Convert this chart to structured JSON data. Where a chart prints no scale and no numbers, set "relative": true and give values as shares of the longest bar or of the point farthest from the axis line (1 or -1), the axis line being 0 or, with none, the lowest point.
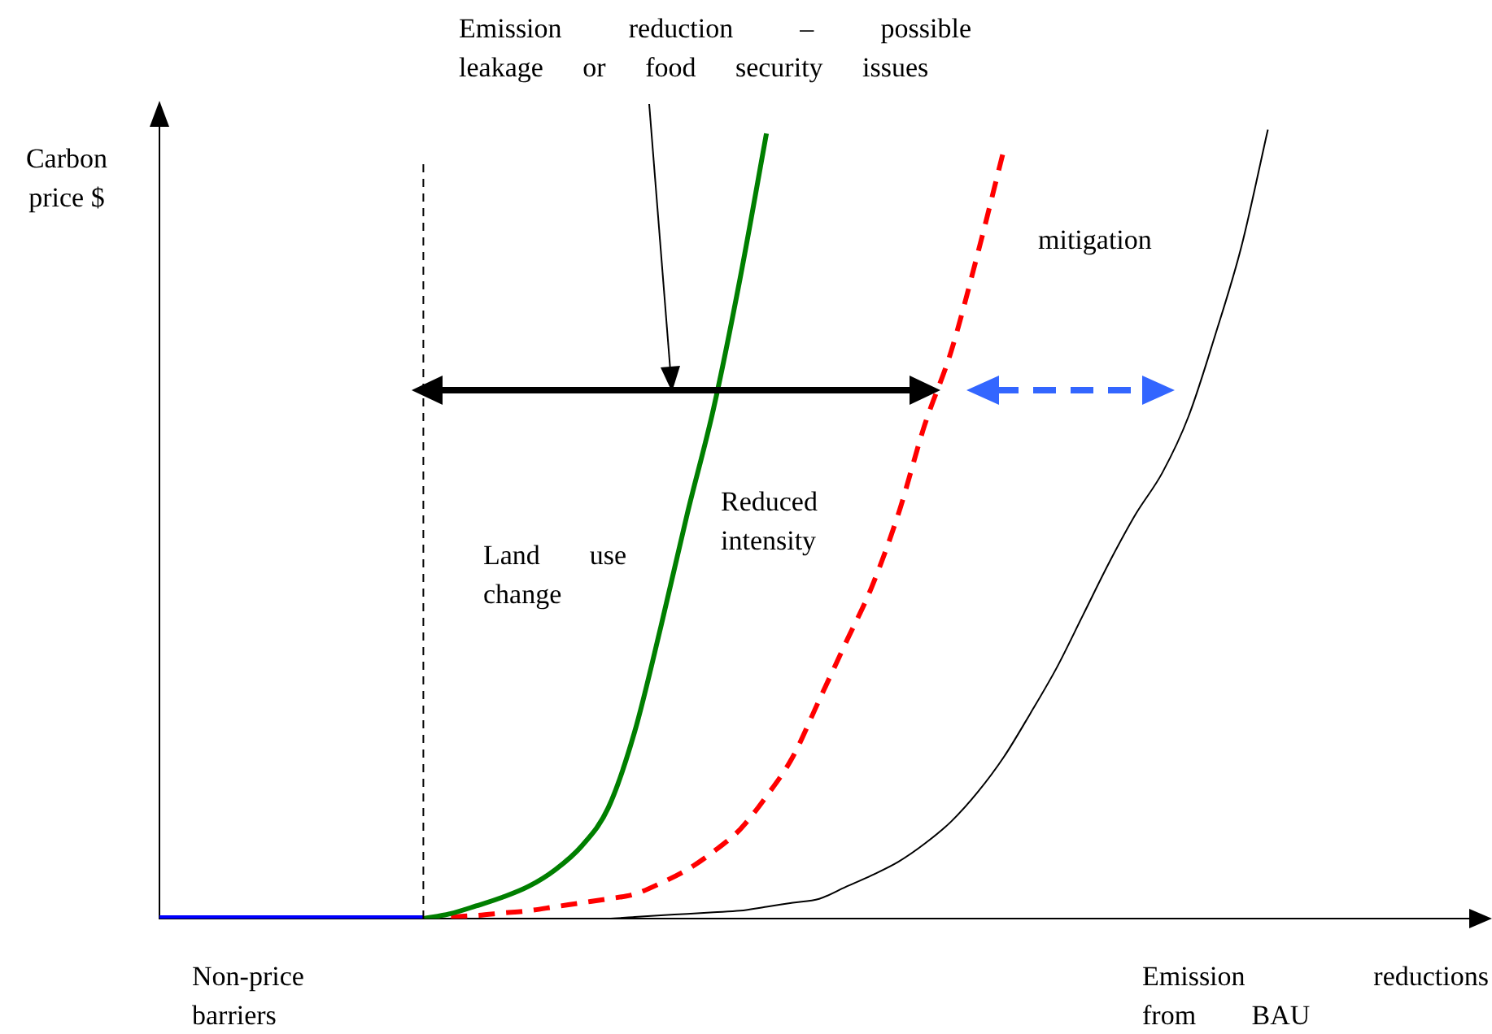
{
  "chart_data": {
    "type": "line",
    "relative": true,
    "xlabel": "Emission reductions from BAU",
    "ylabel": "Carbon price $",
    "categories": [
      null,
      null,
      null,
      null,
      null,
      null,
      null,
      null,
      null,
      null,
      null,
      null,
      null,
      null,
      null,
      null,
      null,
      null,
      null,
      null,
      null,
      null,
      null,
      null,
      null,
      null,
      null,
      null,
      null,
      null,
      null,
      null,
      null,
      null,
      null,
      null,
      null,
      null,
      null,
      null,
      null,
      null,
      null,
      null,
      null,
      null,
      null,
      null,
      null,
      null,
      null
    ],
    "series": [
      {
        "color": "#0000ff",
        "line_style": "solid",
        "values": [
          0,
          0,
          0,
          0,
          0,
          0,
          0,
          0,
          0,
          0,
          0,
          null,
          null,
          null,
          null,
          null,
          null,
          null,
          null,
          null,
          null,
          null,
          null,
          null,
          null,
          null,
          null,
          null,
          null,
          null,
          null,
          null,
          null,
          null,
          null,
          null,
          null,
          null,
          null,
          null,
          null,
          null,
          null,
          null,
          null,
          null,
          null,
          null,
          null,
          null,
          null
        ]
      },
      {
        "color": "#007f00",
        "line_style": "solid",
        "values": [
          null,
          null,
          null,
          null,
          null,
          null,
          null,
          null,
          null,
          null,
          0,
          0.006,
          0.016,
          0.027,
          0.041,
          0.062,
          0.092,
          0.14,
          0.236,
          0.37,
          0.513,
          0.647,
          0.811,
          0.995,
          null,
          null,
          null,
          null,
          null,
          null,
          null,
          null,
          null,
          null,
          null,
          null,
          null,
          null,
          null,
          null,
          null,
          null,
          null,
          null,
          null,
          null,
          null,
          null,
          null,
          null,
          null
        ]
      },
      {
        "color": "#ff0000",
        "line_style": "dashed",
        "values": [
          null,
          null,
          null,
          null,
          null,
          null,
          null,
          null,
          null,
          null,
          0,
          0.002,
          0.004,
          0.007,
          0.01,
          0.015,
          0.02,
          0.025,
          0.031,
          0.045,
          0.062,
          0.085,
          0.113,
          0.155,
          0.205,
          0.277,
          0.349,
          0.421,
          0.513,
          0.626,
          0.719,
          0.842,
          0.975,
          null,
          null,
          null,
          null,
          null,
          null,
          null,
          null,
          null,
          null,
          null,
          null,
          null,
          null,
          null,
          null,
          null,
          null
        ]
      },
      {
        "color": "#000000",
        "line_style": "solid",
        "values": [
          null,
          null,
          null,
          null,
          null,
          null,
          null,
          null,
          null,
          null,
          0,
          0,
          0,
          0,
          0,
          0,
          0,
          0,
          0.002,
          0.004,
          0.006,
          0.008,
          0.01,
          0.015,
          0.02,
          0.025,
          0.04,
          0.055,
          0.072,
          0.095,
          0.123,
          0.16,
          0.205,
          0.26,
          0.318,
          0.385,
          0.452,
          0.513,
          0.565,
          0.637,
          0.739,
          0.852,
          1,
          null,
          null,
          null,
          null,
          null,
          null,
          null,
          null
        ]
      }
    ],
    "annotations": [
      "Emission reduction – possible leakage or food security issues",
      "mitigation",
      "Reduced intensity",
      "Land use change",
      "Non-price barriers"
    ],
    "marker": "none",
    "legend": false,
    "grid": false,
    "tick_labels": false
  }
}
